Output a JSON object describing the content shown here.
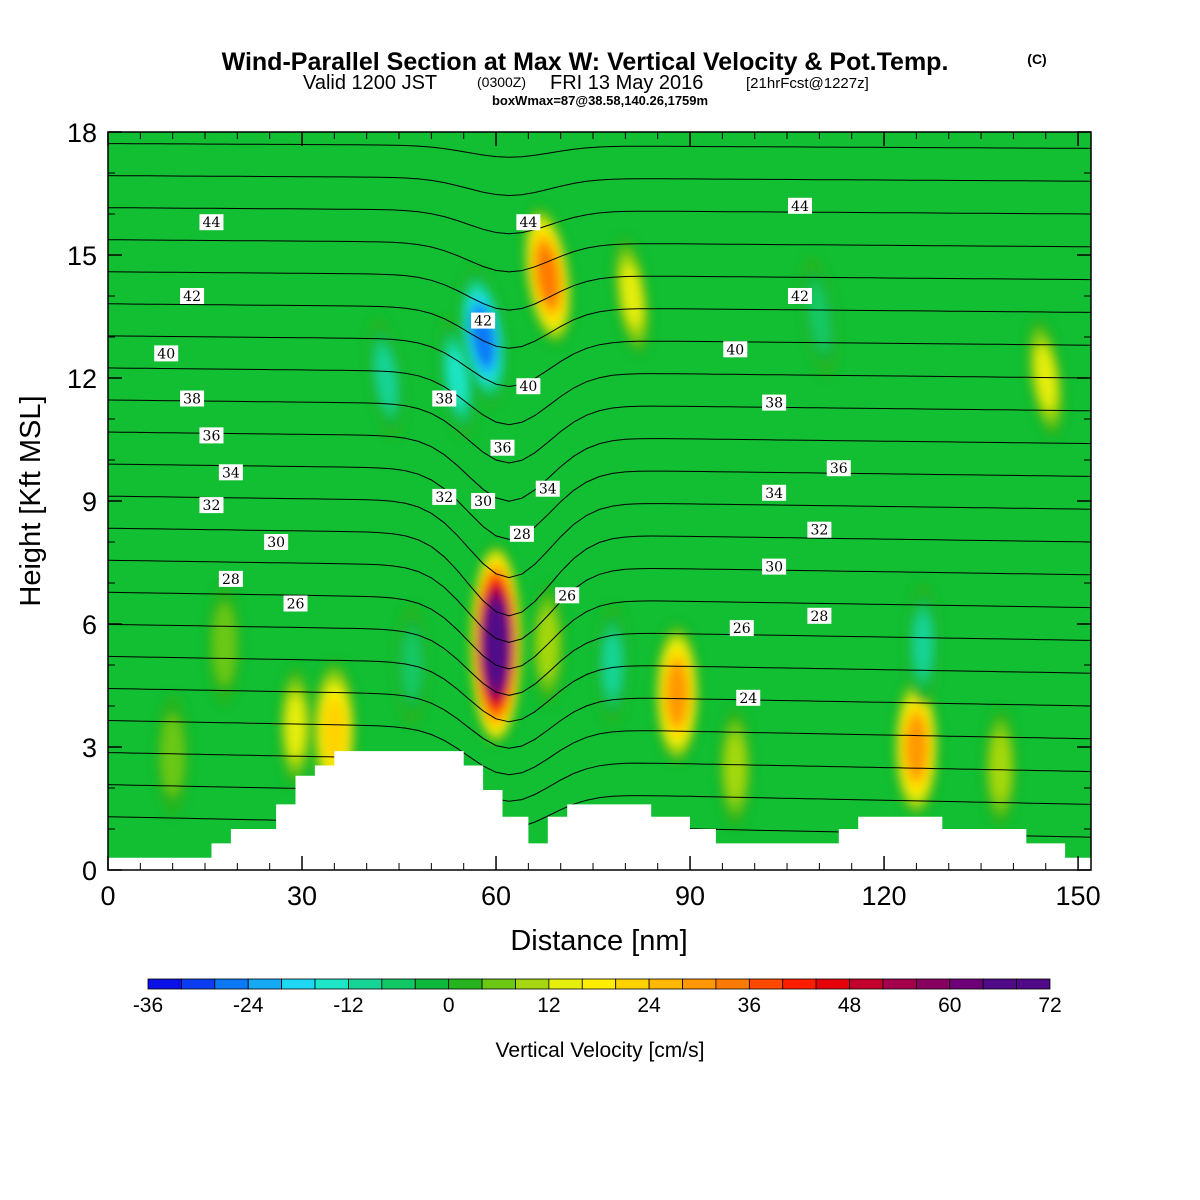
{
  "header": {
    "title": "Wind-Parallel Section at Max W: Vertical Velocity & Pot.Temp.",
    "title_mark": "(C)",
    "subtitle_lead": "Valid 1200 JST",
    "subtitle_utc": "(0300Z)",
    "subtitle_date": "FRI 13 May 2016",
    "subtitle_fcst": "[21hrFcst@1227z]",
    "info": "boxWmax=87@38.58,140.26,1759m"
  },
  "chart_data": {
    "type": "heatmap",
    "xlabel": "Distance [nm]",
    "ylabel": "Height [Kft MSL]",
    "xlim": [
      0,
      152
    ],
    "ylim": [
      0,
      18
    ],
    "x_ticks": [
      0,
      30,
      60,
      90,
      120,
      150
    ],
    "y_ticks": [
      0,
      3,
      6,
      9,
      12,
      15,
      18
    ],
    "colorbar": {
      "label": "Vertical Velocity [cm/s]",
      "range": [
        -36,
        72
      ],
      "step": 4,
      "tick_labels": [
        -36,
        -24,
        -12,
        0,
        12,
        24,
        36,
        48,
        60,
        72
      ],
      "colors": [
        "#0a10e6",
        "#0b3ef2",
        "#0a78f7",
        "#14aaf5",
        "#1ed7f5",
        "#1ee6c8",
        "#16d496",
        "#12c864",
        "#10b83c",
        "#25b41b",
        "#6bc812",
        "#a5d810",
        "#e6ee0c",
        "#ffee00",
        "#ffd200",
        "#ffb800",
        "#ff9800",
        "#ff7a00",
        "#ff4a00",
        "#ff1e00",
        "#e6000a",
        "#c3002d",
        "#a5004b",
        "#87005f",
        "#6e0078",
        "#500a87"
      ]
    },
    "vertical_velocity_features": [
      {
        "x": 10,
        "y": 2.8,
        "w": 3
      },
      {
        "x": 18,
        "y": 5.5,
        "w": 7
      },
      {
        "x": 29,
        "y": 3.5,
        "w": 14
      },
      {
        "x": 35,
        "y": 3.4,
        "w": 22
      },
      {
        "x": 47,
        "y": 5.0,
        "w": -10
      },
      {
        "x": 43,
        "y": 12.0,
        "w": -12
      },
      {
        "x": 54,
        "y": 12.0,
        "w": -16
      },
      {
        "x": 58,
        "y": 13.0,
        "w": -30
      },
      {
        "x": 60,
        "y": 5.5,
        "w": 72
      },
      {
        "x": 68,
        "y": 14.5,
        "w": 32
      },
      {
        "x": 68,
        "y": 5.5,
        "w": 10
      },
      {
        "x": 78,
        "y": 5.0,
        "w": -14
      },
      {
        "x": 81,
        "y": 14.0,
        "w": 14
      },
      {
        "x": 88,
        "y": 4.3,
        "w": 28
      },
      {
        "x": 97,
        "y": 2.5,
        "w": 8
      },
      {
        "x": 110,
        "y": 13.5,
        "w": -10
      },
      {
        "x": 125,
        "y": 3.0,
        "w": 28
      },
      {
        "x": 126,
        "y": 5.5,
        "w": -14
      },
      {
        "x": 138,
        "y": 2.5,
        "w": 8
      },
      {
        "x": 145,
        "y": 12.0,
        "w": 12
      }
    ],
    "theta_levels": [
      24,
      25,
      26,
      27,
      28,
      29,
      30,
      31,
      32,
      33,
      34,
      35,
      36,
      37,
      38,
      39,
      40,
      41,
      42,
      43,
      44,
      45,
      46
    ],
    "theta_labels": [
      {
        "x": 16,
        "y": 15.8,
        "text": "44"
      },
      {
        "x": 13,
        "y": 14.0,
        "text": "42"
      },
      {
        "x": 9,
        "y": 12.6,
        "text": "40"
      },
      {
        "x": 13,
        "y": 11.5,
        "text": "38"
      },
      {
        "x": 16,
        "y": 10.6,
        "text": "36"
      },
      {
        "x": 19,
        "y": 9.7,
        "text": "34"
      },
      {
        "x": 16,
        "y": 8.9,
        "text": "32"
      },
      {
        "x": 26,
        "y": 8.0,
        "text": "30"
      },
      {
        "x": 19,
        "y": 7.1,
        "text": "28"
      },
      {
        "x": 29,
        "y": 6.5,
        "text": "26"
      },
      {
        "x": 65,
        "y": 15.8,
        "text": "44"
      },
      {
        "x": 58,
        "y": 13.4,
        "text": "42"
      },
      {
        "x": 65,
        "y": 11.8,
        "text": "40"
      },
      {
        "x": 52,
        "y": 11.5,
        "text": "38"
      },
      {
        "x": 61,
        "y": 10.3,
        "text": "36"
      },
      {
        "x": 68,
        "y": 9.3,
        "text": "34"
      },
      {
        "x": 52,
        "y": 9.1,
        "text": "32"
      },
      {
        "x": 58,
        "y": 9.0,
        "text": "30"
      },
      {
        "x": 64,
        "y": 8.2,
        "text": "28"
      },
      {
        "x": 71,
        "y": 6.7,
        "text": "26"
      },
      {
        "x": 107,
        "y": 16.2,
        "text": "44"
      },
      {
        "x": 107,
        "y": 14.0,
        "text": "42"
      },
      {
        "x": 97,
        "y": 12.7,
        "text": "40"
      },
      {
        "x": 103,
        "y": 11.4,
        "text": "38"
      },
      {
        "x": 113,
        "y": 9.8,
        "text": "36"
      },
      {
        "x": 103,
        "y": 9.2,
        "text": "34"
      },
      {
        "x": 110,
        "y": 8.3,
        "text": "32"
      },
      {
        "x": 103,
        "y": 7.4,
        "text": "30"
      },
      {
        "x": 110,
        "y": 6.2,
        "text": "28"
      },
      {
        "x": 98,
        "y": 5.9,
        "text": "26"
      },
      {
        "x": 99,
        "y": 4.2,
        "text": "24"
      }
    ],
    "terrain_kft": [
      {
        "x": 0,
        "h": 0.3
      },
      {
        "x": 16,
        "h": 0.3
      },
      {
        "x": 16,
        "h": 0.65
      },
      {
        "x": 19,
        "h": 0.65
      },
      {
        "x": 19,
        "h": 1.0
      },
      {
        "x": 26,
        "h": 1.0
      },
      {
        "x": 26,
        "h": 1.6
      },
      {
        "x": 29,
        "h": 1.6
      },
      {
        "x": 29,
        "h": 2.3
      },
      {
        "x": 32,
        "h": 2.3
      },
      {
        "x": 32,
        "h": 2.55
      },
      {
        "x": 35,
        "h": 2.55
      },
      {
        "x": 35,
        "h": 2.9
      },
      {
        "x": 55,
        "h": 2.9
      },
      {
        "x": 55,
        "h": 2.55
      },
      {
        "x": 58,
        "h": 2.55
      },
      {
        "x": 58,
        "h": 1.95
      },
      {
        "x": 61,
        "h": 1.95
      },
      {
        "x": 61,
        "h": 1.3
      },
      {
        "x": 65,
        "h": 1.3
      },
      {
        "x": 65,
        "h": 0.65
      },
      {
        "x": 68,
        "h": 0.65
      },
      {
        "x": 68,
        "h": 1.3
      },
      {
        "x": 71,
        "h": 1.3
      },
      {
        "x": 71,
        "h": 1.6
      },
      {
        "x": 84,
        "h": 1.6
      },
      {
        "x": 84,
        "h": 1.3
      },
      {
        "x": 90,
        "h": 1.3
      },
      {
        "x": 90,
        "h": 1.0
      },
      {
        "x": 94,
        "h": 1.0
      },
      {
        "x": 94,
        "h": 0.65
      },
      {
        "x": 113,
        "h": 0.65
      },
      {
        "x": 113,
        "h": 1.0
      },
      {
        "x": 116,
        "h": 1.0
      },
      {
        "x": 116,
        "h": 1.3
      },
      {
        "x": 129,
        "h": 1.3
      },
      {
        "x": 129,
        "h": 1.0
      },
      {
        "x": 142,
        "h": 1.0
      },
      {
        "x": 142,
        "h": 0.65
      },
      {
        "x": 148,
        "h": 0.65
      },
      {
        "x": 148,
        "h": 0.3
      },
      {
        "x": 152,
        "h": 0.3
      }
    ]
  }
}
